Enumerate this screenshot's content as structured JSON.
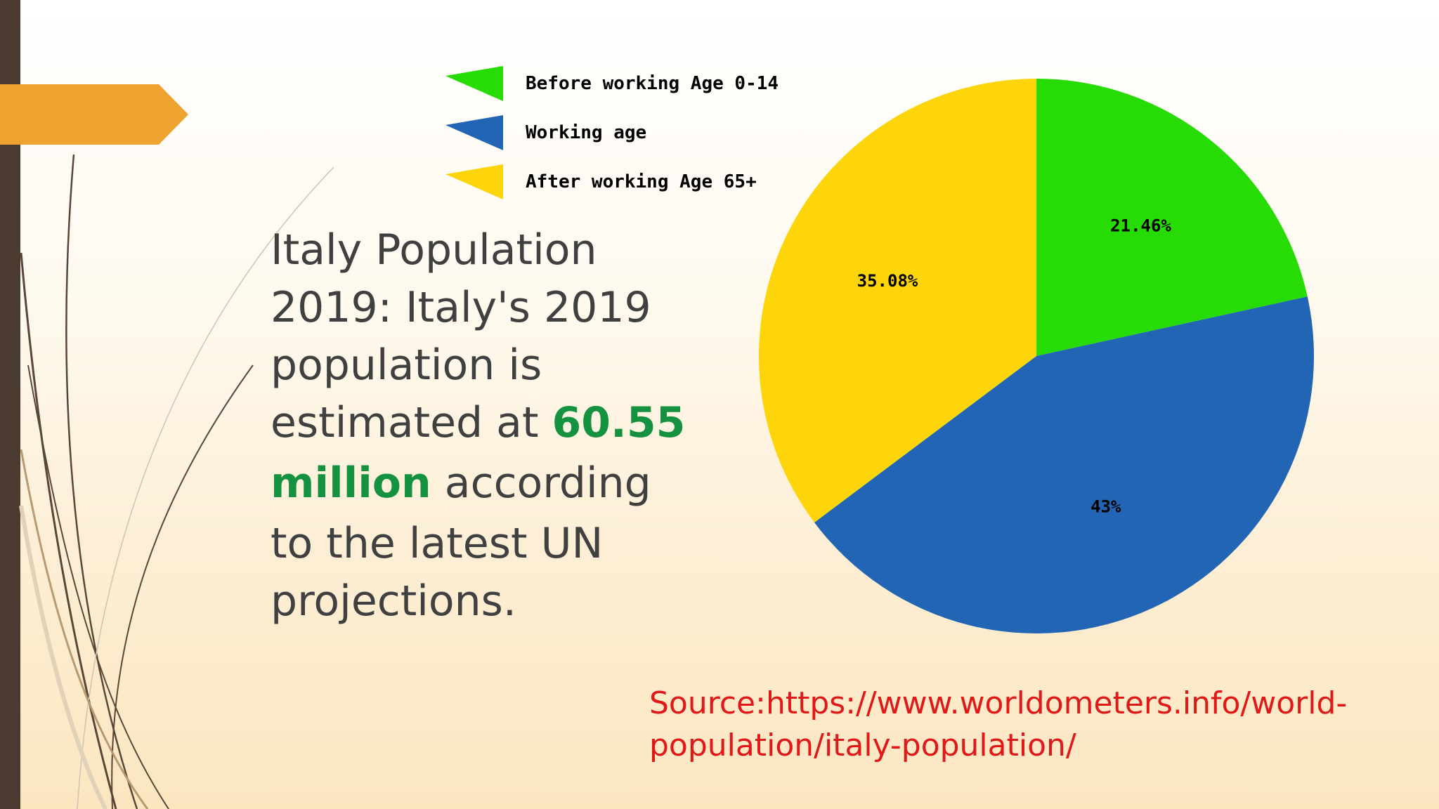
{
  "slide": {
    "title_parts": {
      "line1": "Italy Population",
      "line2": "2019: Italy's 2019",
      "line3": "population is",
      "line4_prefix": "estimated at ",
      "highlight_number": "60.55",
      "highlight_unit": "million",
      "line5_suffix": " according",
      "line6": "to the latest UN",
      "line7": "projections."
    },
    "source": "Source:https://www.worldometers.info/world-population/italy-population/",
    "colors": {
      "accent_green": "#14923f",
      "source_red": "#e01818",
      "arrow_orange": "#eea331",
      "left_bar": "#4b3a2f"
    }
  },
  "chart_data": {
    "type": "pie",
    "title": "",
    "slices": [
      {
        "label": "Before working Age 0-14",
        "value": 21.46,
        "display": "21.46%",
        "color": "#27dc05"
      },
      {
        "label": "Working age",
        "value": 43,
        "display": "43%",
        "color": "#2165b4"
      },
      {
        "label": "After working Age 65+",
        "value": 35.08,
        "display": "35.08%",
        "color": "#fed40a"
      }
    ],
    "start_angle_deg": 0,
    "direction": "clockwise",
    "legend_position": "top-left"
  }
}
